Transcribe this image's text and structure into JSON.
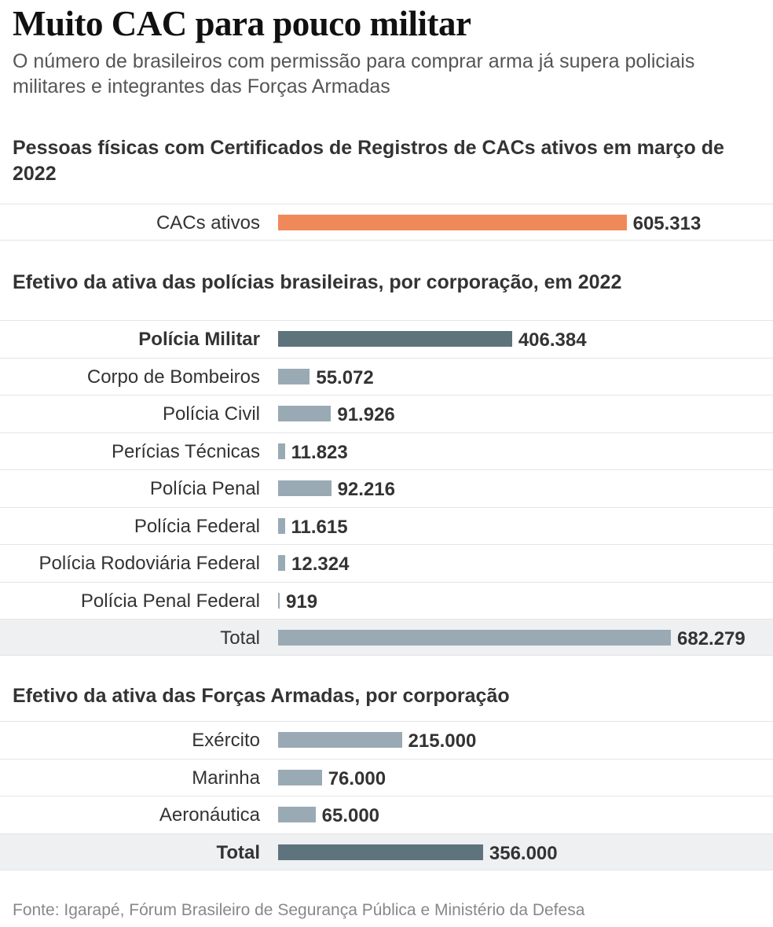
{
  "header": {
    "title": "Muito CAC para pouco militar",
    "subtitle": "O número de brasileiros com permissão para comprar arma já supera policiais militares e integrantes das Forças Armadas"
  },
  "colors": {
    "cac": "#f0895a",
    "highlight": "#5f737d",
    "normal": "#9aaab4"
  },
  "chart_data": [
    {
      "type": "bar",
      "orientation": "horizontal",
      "title": "Pessoas físicas com Certificados de Registros de CACs ativos em março de 2022",
      "categories": [
        "CACs ativos"
      ],
      "values": [
        605313
      ],
      "value_labels": [
        "605.313"
      ],
      "emphasis": [
        false
      ],
      "bar_colors": [
        "cac"
      ]
    },
    {
      "type": "bar",
      "orientation": "horizontal",
      "title": "Efetivo da ativa das polícias brasileiras, por corporação, em 2022",
      "categories": [
        "Polícia Militar",
        "Corpo de Bombeiros",
        "Polícia Civil",
        "Perícias Técnicas",
        "Polícia Penal",
        "Polícia Federal",
        "Polícia Rodoviária Federal",
        "Polícia Penal Federal",
        "Total"
      ],
      "values": [
        406384,
        55072,
        91926,
        11823,
        92216,
        11615,
        12324,
        919,
        682279
      ],
      "value_labels": [
        "406.384",
        "55.072",
        "91.926",
        "11.823",
        "92.216",
        "11.615",
        "12.324",
        "919",
        "682.279"
      ],
      "emphasis": [
        true,
        false,
        false,
        false,
        false,
        false,
        false,
        false,
        false
      ],
      "bar_colors": [
        "highlight",
        "normal",
        "normal",
        "normal",
        "normal",
        "normal",
        "normal",
        "normal",
        "normal"
      ],
      "total_row": true
    },
    {
      "type": "bar",
      "orientation": "horizontal",
      "title": "Efetivo da ativa das Forças Armadas, por corporação",
      "categories": [
        "Exército",
        "Marinha",
        "Aeronáutica",
        "Total"
      ],
      "values": [
        215000,
        76000,
        65000,
        356000
      ],
      "value_labels": [
        "215.000",
        "76.000",
        "65.000",
        "356.000"
      ],
      "emphasis": [
        false,
        false,
        false,
        true
      ],
      "bar_colors": [
        "normal",
        "normal",
        "normal",
        "highlight"
      ],
      "total_row": true
    }
  ],
  "footer": {
    "source": "Fonte: Igarapé, Fórum Brasileiro de Segurança Pública e Ministério da Defesa"
  }
}
